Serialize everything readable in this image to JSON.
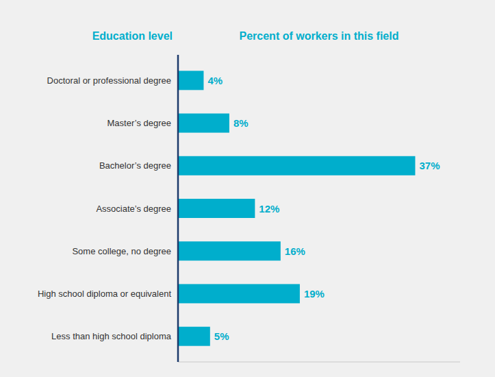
{
  "chart_data": {
    "type": "bar",
    "orientation": "horizontal",
    "xlabel": "Percent of workers in this field",
    "ylabel": "Education level",
    "categories": [
      "Doctoral or professional degree",
      "Master’s degree",
      "Bachelor’s degree",
      "Associate’s degree",
      "Some college, no degree",
      "High school diploma or equivalent",
      "Less than high school diploma"
    ],
    "values": [
      4,
      8,
      37,
      12,
      16,
      19,
      5
    ],
    "value_labels": [
      "4%",
      "8%",
      "37%",
      "12%",
      "16%",
      "19%",
      "5%"
    ],
    "color": "#00AECC",
    "xlim": [
      0,
      44
    ],
    "data_labels": true,
    "tick_labels": "y",
    "grid": false
  }
}
